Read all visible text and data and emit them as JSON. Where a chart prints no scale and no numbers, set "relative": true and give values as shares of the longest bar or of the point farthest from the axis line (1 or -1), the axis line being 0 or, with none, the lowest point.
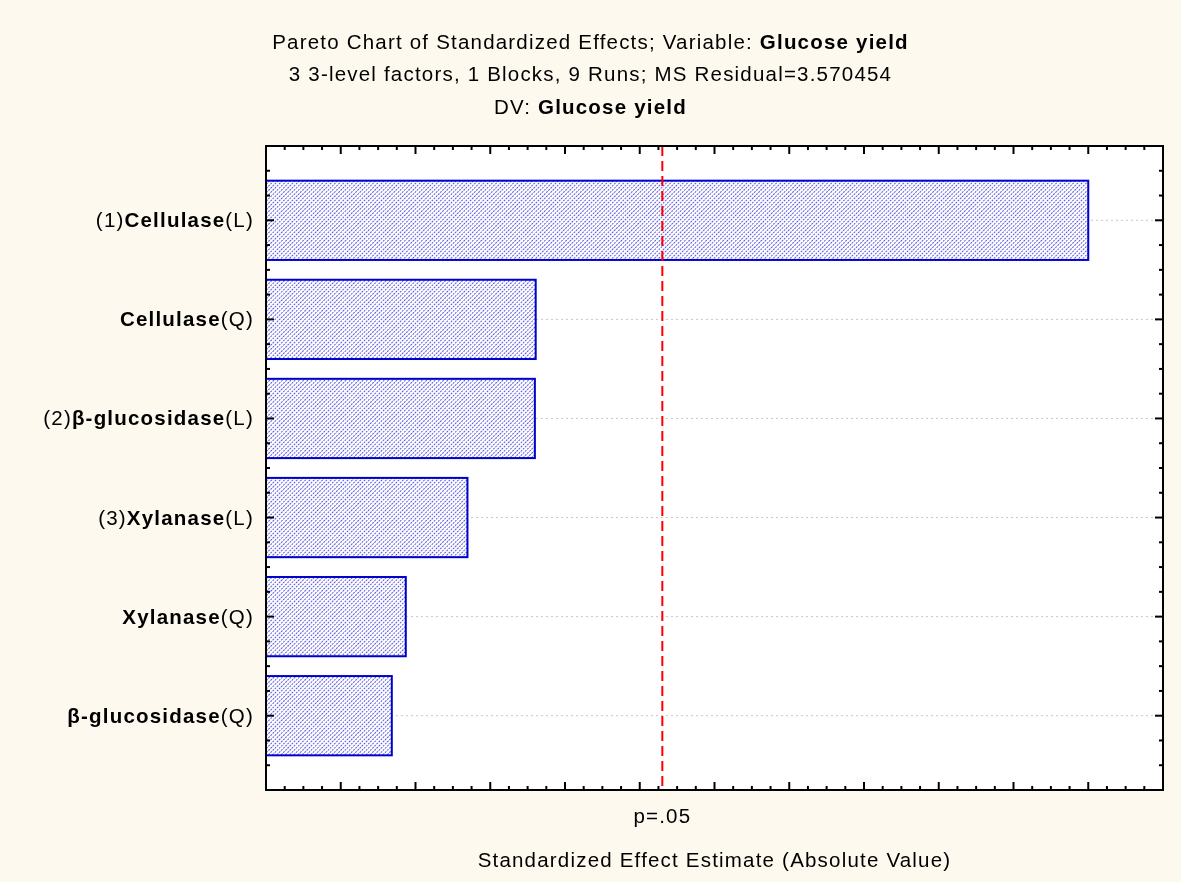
{
  "chart_data": {
    "type": "bar",
    "orientation": "horizontal",
    "relative": true,
    "title": "Pareto Chart of Standardized Effects; Variable: Glucose yield",
    "subtitle": "3 3-level factors, 1 Blocks, 9 Runs; MS Residual=3.570454",
    "annotations": [
      "DV: Glucose yield"
    ],
    "xlabel": "Standardized Effect Estimate (Absolute Value)",
    "categories": [
      "(1)Cellulase(L)",
      "Cellulase(Q)",
      "(2)β-glucosidase(L)",
      "(3)Xylanase(L)",
      "Xylanase(Q)",
      "β-glucosidase(Q)"
    ],
    "values": [
      1,
      0.328,
      0.327,
      0.245,
      0.17,
      0.153
    ],
    "color": "#0000cc",
    "ref_lines": [
      {
        "axis": "x",
        "value": 0.482,
        "label": "p=.05",
        "color": "#ff0000",
        "line_style": "dashed"
      }
    ],
    "grid": "y"
  }
}
